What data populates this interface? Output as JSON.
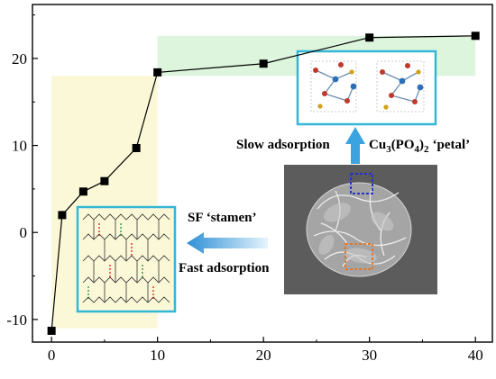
{
  "chart_data": {
    "type": "line",
    "title": "",
    "xlabel": "",
    "ylabel": "",
    "xlim": [
      -1.8,
      41.6
    ],
    "ylim": [
      -12.6,
      26.2
    ],
    "x_ticks": [
      0,
      10,
      20,
      30,
      40
    ],
    "y_ticks": [
      -10,
      0,
      10,
      20
    ],
    "x_tick_labels": [
      "0",
      "10",
      "20",
      "30",
      "40"
    ],
    "y_tick_labels": [
      "-10",
      "0",
      "10",
      "20"
    ],
    "grid": false,
    "legend": "none",
    "series": [
      {
        "x": [
          0,
          1,
          3,
          5,
          8,
          10,
          20,
          30,
          40
        ],
        "y": [
          -11.3,
          2,
          4.7,
          5.9,
          9.7,
          18.4,
          19.4,
          22.4,
          22.6
        ],
        "marker": "square",
        "color": "#000000"
      }
    ],
    "regions": [
      {
        "x": [
          0,
          10
        ],
        "y": [
          -11,
          18
        ],
        "color": "#fbf8d8"
      },
      {
        "x": [
          10,
          40
        ],
        "y": [
          18,
          22.6
        ],
        "color": "#dcf5dc"
      }
    ],
    "annotations": {
      "slow": "Slow adsorption",
      "cu_formula": "Cu",
      "cu_sub1": "3",
      "cu_mid": "(PO",
      "cu_sub2": "4",
      "cu_close": ")",
      "cu_sub3": "2",
      "petal": "‘petal’",
      "sf": "SF ‘stamen’",
      "fast": "Fast adsorption"
    }
  },
  "colors": {
    "inset_border": "#36b6d6",
    "arrow": "#3aa3e0",
    "slow_region": "#fbf8d8",
    "fast_region": "#dcf5dc"
  }
}
